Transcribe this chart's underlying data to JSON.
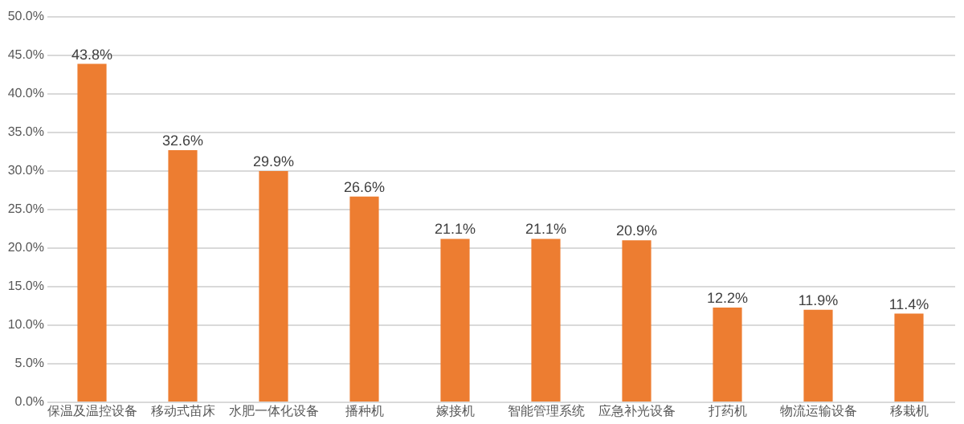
{
  "chart_data": {
    "type": "bar",
    "categories": [
      "保温及温控设备",
      "移动式苗床",
      "水肥一体化设备",
      "播种机",
      "嫁接机",
      "智能管理系统",
      "应急补光设备",
      "打药机",
      "物流运输设备",
      "移栽机"
    ],
    "values": [
      43.8,
      32.6,
      29.9,
      26.6,
      21.1,
      21.1,
      20.9,
      12.2,
      11.9,
      11.4
    ],
    "value_labels": [
      "43.8%",
      "32.6%",
      "29.9%",
      "26.6%",
      "21.1%",
      "21.1%",
      "20.9%",
      "12.2%",
      "11.9%",
      "11.4%"
    ],
    "color": "#ed7d31",
    "ylim": [
      0,
      50
    ],
    "yticks": [
      {
        "value": 0,
        "label": "0.0%"
      },
      {
        "value": 5,
        "label": "5.0%"
      },
      {
        "value": 10,
        "label": "10.0%"
      },
      {
        "value": 15,
        "label": "15.0%"
      },
      {
        "value": 20,
        "label": "20.0%"
      },
      {
        "value": 25,
        "label": "25.0%"
      },
      {
        "value": 30,
        "label": "30.0%"
      },
      {
        "value": 35,
        "label": "35.0%"
      },
      {
        "value": 40,
        "label": "40.0%"
      },
      {
        "value": 45,
        "label": "45.0%"
      },
      {
        "value": 50,
        "label": "50.0%"
      }
    ],
    "grid": "y"
  }
}
